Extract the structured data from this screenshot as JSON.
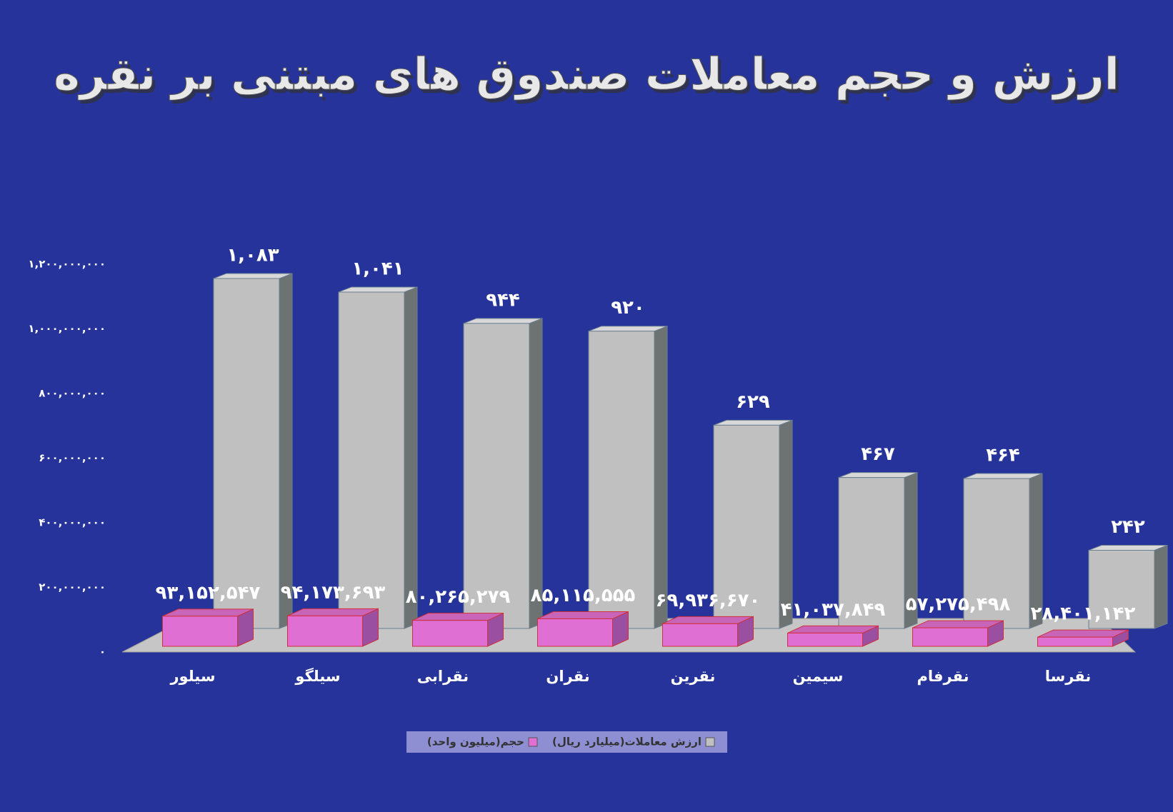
{
  "chart_data": {
    "type": "bar3d",
    "title": "ارزش و حجم معاملات صندوق های مبتنی بر نقره",
    "categories": [
      "سیلور",
      "سیلگو",
      "نقرابی",
      "نقران",
      "نقرین",
      "سیمین",
      "نقرفام",
      "نقرسا"
    ],
    "series": [
      {
        "name": "ارزش معاملات(میلیارد ریال)",
        "color": "#c0c0c0",
        "values": [
          1083000000,
          1041000000,
          944000000,
          920000000,
          629000000,
          467000000,
          464000000,
          242000000
        ],
        "value_labels": [
          "۱,۰۸۳",
          "۱,۰۴۱",
          "۹۴۴",
          "۹۲۰",
          "۶۲۹",
          "۴۶۷",
          "۴۶۴",
          "۲۴۲"
        ]
      },
      {
        "name": "حجم(میلیون واحد)",
        "color": "#df6fd3",
        "values": [
          93152547,
          94173693,
          80265279,
          85115555,
          69936670,
          41037849,
          57275498,
          28401142
        ],
        "value_labels": [
          "۹۳,۱۵۲,۵۴۷",
          "۹۴,۱۷۳,۶۹۳",
          "۸۰,۲۶۵,۲۷۹",
          "۸۵,۱۱۵,۵۵۵",
          "۶۹,۹۳۶,۶۷۰",
          "۴۱,۰۳۷,۸۴۹",
          "۵۷,۲۷۵,۴۹۸",
          "۲۸,۴۰۱,۱۴۲"
        ]
      }
    ],
    "ylim": [
      0,
      1200000000
    ],
    "yticks": [
      {
        "value": 0,
        "label": "۰"
      },
      {
        "value": 200000000,
        "label": "۲۰۰,۰۰۰,۰۰۰"
      },
      {
        "value": 400000000,
        "label": "۴۰۰,۰۰۰,۰۰۰"
      },
      {
        "value": 600000000,
        "label": "۶۰۰,۰۰۰,۰۰۰"
      },
      {
        "value": 800000000,
        "label": "۸۰۰,۰۰۰,۰۰۰"
      },
      {
        "value": 1000000000,
        "label": "۱,۰۰۰,۰۰۰,۰۰۰"
      },
      {
        "value": 1200000000,
        "label": "۱,۲۰۰,۰۰۰,۰۰۰"
      }
    ],
    "grid": false
  }
}
